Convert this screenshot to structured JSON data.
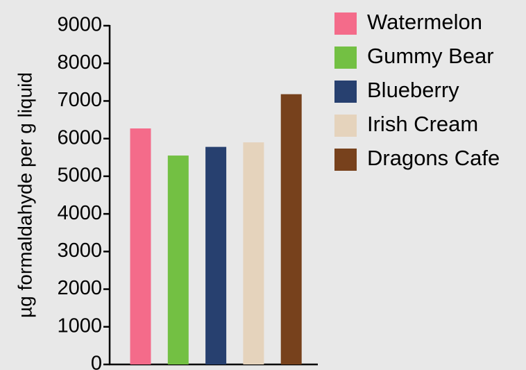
{
  "chart_data": {
    "type": "bar",
    "y_label": "µg formaldahyde per g liquid",
    "categories": [
      "Watermelon",
      "Gummy Bear",
      "Blueberry",
      "Irish Cream",
      "Dragons Cafe"
    ],
    "values": [
      6270,
      5550,
      5780,
      5900,
      7180
    ],
    "colors": [
      "#f46b8a",
      "#73c043",
      "#27406f",
      "#e5d3bc",
      "#77411c"
    ],
    "ylim": [
      0,
      9000
    ],
    "yticks": [
      0,
      1000,
      2000,
      3000,
      4000,
      5000,
      6000,
      7000,
      8000,
      9000
    ],
    "legend": "right"
  }
}
